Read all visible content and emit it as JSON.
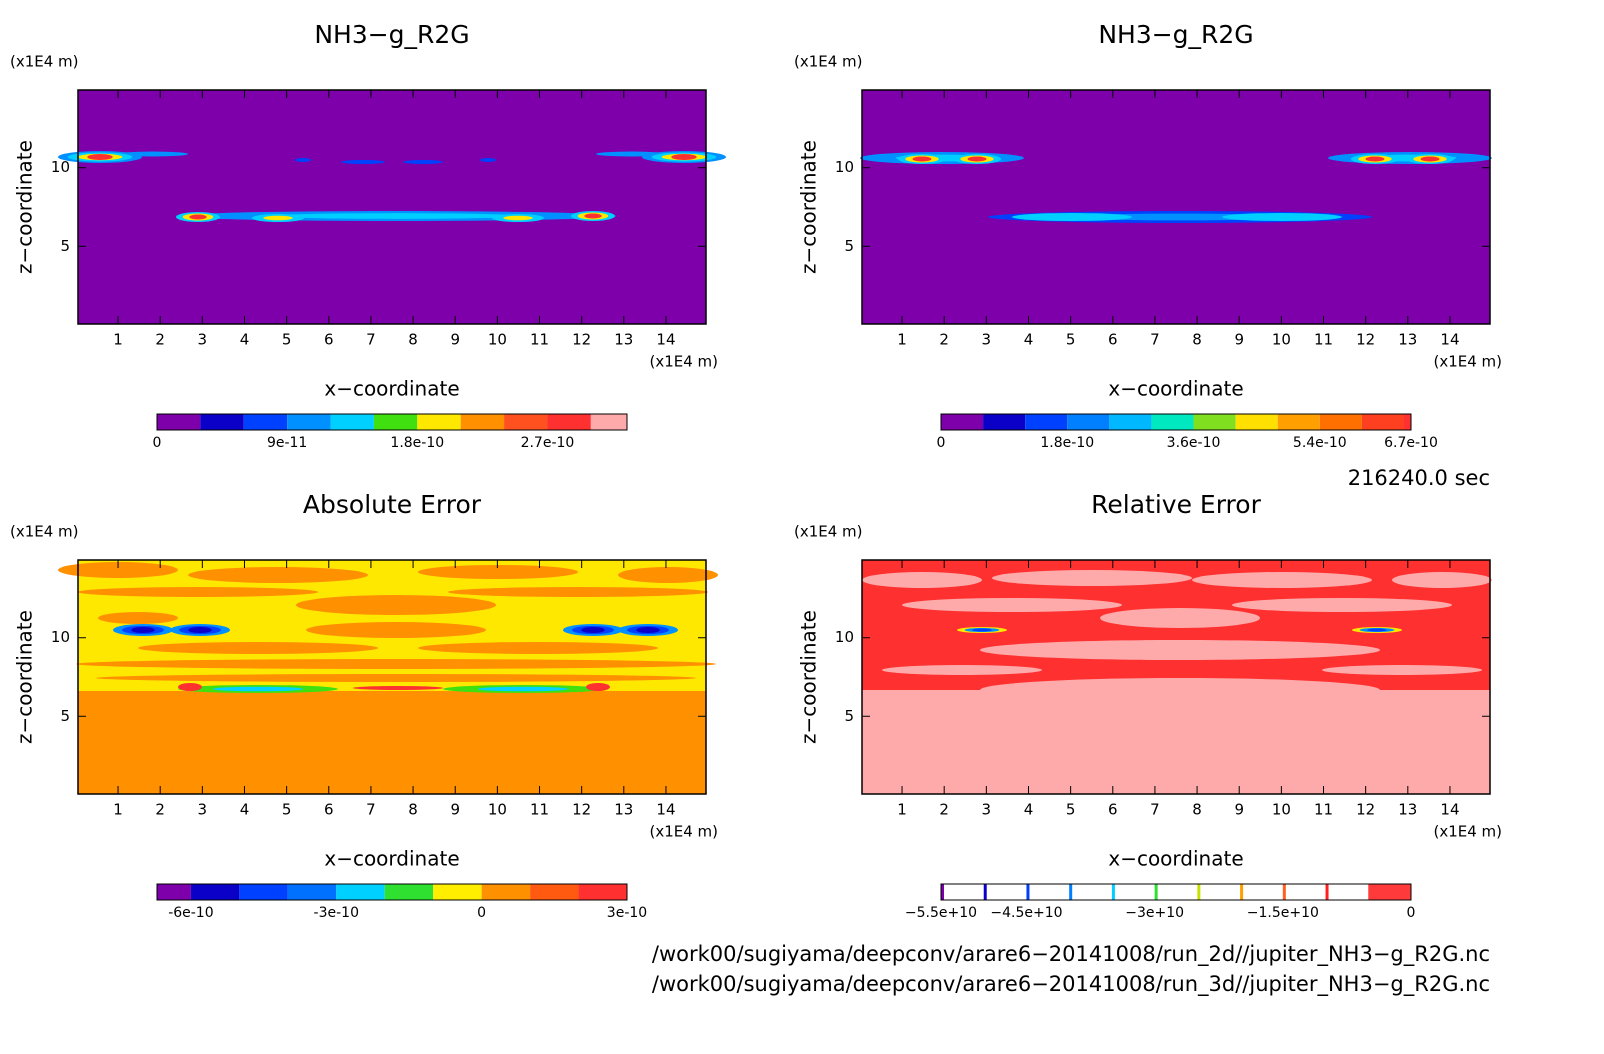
{
  "chart_data": [
    {
      "type": "contour",
      "title": "NH3−g_R2G",
      "x_label": "x−coordinate",
      "y_label": "z−coordinate",
      "x_unit": "(x1E4 m)",
      "y_unit": "(x1E4 m)",
      "xlim": [
        0.05,
        14.95
      ],
      "ylim": [
        0.05,
        14.95
      ],
      "xticks": [
        1,
        2,
        3,
        4,
        5,
        6,
        7,
        8,
        9,
        10,
        11,
        12,
        13,
        14
      ],
      "yticks": [
        5,
        10
      ],
      "colorbar": {
        "bounds": [
          0,
          3e-11,
          6e-11,
          9e-11,
          1.2e-10,
          1.5e-10,
          1.8e-10,
          2.1e-10,
          2.4e-10,
          2.7e-10,
          3e-10,
          3.25e-10
        ],
        "colors": [
          "#7d00aa",
          "#0a00c8",
          "#0040ff",
          "#0090ff",
          "#00d0ff",
          "#40e010",
          "#ffe800",
          "#ff9000",
          "#ff5020",
          "#ff3030",
          "#ffaaaa"
        ],
        "ticks": [
          0,
          9e-11,
          1.8e-10,
          2.7e-10
        ]
      }
    },
    {
      "type": "contour",
      "title": "NH3−g_R2G",
      "x_label": "x−coordinate",
      "y_label": "z−coordinate",
      "x_unit": "(x1E4 m)",
      "y_unit": "(x1E4 m)",
      "xlim": [
        0.05,
        14.95
      ],
      "ylim": [
        0.05,
        14.95
      ],
      "xticks": [
        1,
        2,
        3,
        4,
        5,
        6,
        7,
        8,
        9,
        10,
        11,
        12,
        13,
        14
      ],
      "yticks": [
        5,
        10
      ],
      "colorbar": {
        "bounds": [
          0,
          6e-11,
          1.2e-10,
          1.8e-10,
          2.4e-10,
          3e-10,
          3.6e-10,
          4.2e-10,
          4.8e-10,
          5.4e-10,
          6e-10,
          6.6e-10,
          6.7e-10
        ],
        "colors": [
          "#7d00aa",
          "#0a00c8",
          "#0040ff",
          "#0080ff",
          "#00b8ff",
          "#00e8c0",
          "#80e020",
          "#ffe000",
          "#ffa000",
          "#ff7000",
          "#ff4020",
          "#ff3030",
          "#ffaaaa"
        ],
        "ticks": [
          0,
          1.8e-10,
          3.6e-10,
          5.4e-10,
          6.7e-10
        ]
      }
    },
    {
      "type": "contour",
      "title": "Absolute Error",
      "x_label": "x−coordinate",
      "y_label": "z−coordinate",
      "x_unit": "(x1E4 m)",
      "y_unit": "(x1E4 m)",
      "xlim": [
        0.05,
        14.95
      ],
      "ylim": [
        0.05,
        14.95
      ],
      "xticks": [
        1,
        2,
        3,
        4,
        5,
        6,
        7,
        8,
        9,
        10,
        11,
        12,
        13,
        14
      ],
      "yticks": [
        5,
        10
      ],
      "colorbar": {
        "bounds": [
          -6.7e-10,
          -6e-10,
          -5e-10,
          -4e-10,
          -3e-10,
          -2e-10,
          -1e-10,
          0,
          1e-10,
          2e-10,
          3e-10
        ],
        "colors": [
          "#7d00aa",
          "#0a00c8",
          "#0040ff",
          "#0070ff",
          "#00d0ff",
          "#30e030",
          "#ffee00",
          "#ff9000",
          "#ff5a10",
          "#ff3030"
        ],
        "ticks": [
          -6e-10,
          -3e-10,
          0,
          3e-10
        ]
      }
    },
    {
      "type": "contour",
      "title": "Relative Error",
      "x_label": "x−coordinate",
      "y_label": "z−coordinate",
      "x_unit": "(x1E4 m)",
      "y_unit": "(x1E4 m)",
      "xlim": [
        0.05,
        14.95
      ],
      "ylim": [
        0.05,
        14.95
      ],
      "xticks": [
        1,
        2,
        3,
        4,
        5,
        6,
        7,
        8,
        9,
        10,
        11,
        12,
        13,
        14
      ],
      "yticks": [
        5,
        10
      ],
      "colorbar": {
        "style": "stripes",
        "bounds": [
          -55000000000.0,
          -50000000000.0,
          -45000000000.0,
          -40000000000.0,
          -35000000000.0,
          -30000000000.0,
          -25000000000.0,
          -20000000000.0,
          -15000000000.0,
          -10000000000.0,
          -5000000000.0,
          0
        ],
        "colors": [
          "#7d00aa",
          "#0a00c8",
          "#0040ff",
          "#0080ff",
          "#00d0ff",
          "#30e030",
          "#c8e000",
          "#ffa000",
          "#ff6020",
          "#ff2020",
          "#ff3a3a"
        ],
        "ticks": [
          {
            "value": -55000000000.0,
            "label": "−5.5e+10"
          },
          {
            "value": -45000000000.0,
            "label": "−4.5e+10"
          },
          {
            "value": -30000000000.0,
            "label": "−3e+10"
          },
          {
            "value": -15000000000.0,
            "label": "−1.5e+10"
          },
          0
        ]
      }
    }
  ],
  "time_label": "216240.0 sec",
  "files": [
    "/work00/sugiyama/deepconv/arare6−20141008/run_2d//jupiter_NH3−g_R2G.nc",
    "/work00/sugiyama/deepconv/arare6−20141008/run_3d//jupiter_NH3−g_R2G.nc"
  ]
}
